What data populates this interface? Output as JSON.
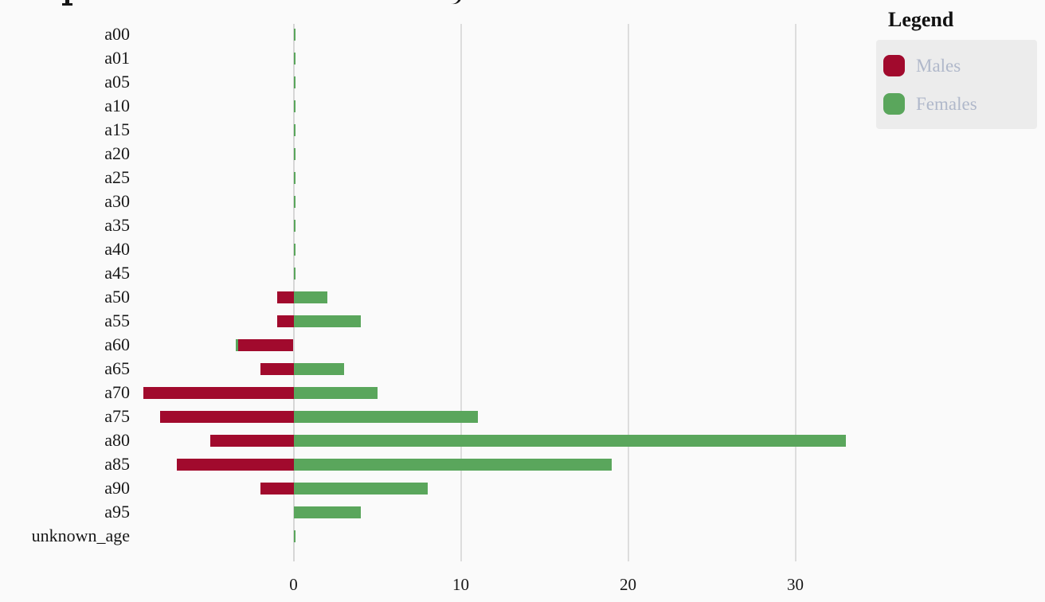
{
  "page": {
    "background": "#fafafa",
    "gridline_color": "#dddddd",
    "zero_line_color": "#d6d6d6",
    "axis_text_color": "#181818"
  },
  "legend": {
    "title": "Legend",
    "box_bg": "#ececec",
    "label_color": "#b0b8ca",
    "items": [
      {
        "label": "Males",
        "color": "#a10a2d"
      },
      {
        "label": "Females",
        "color": "#5aa65c"
      }
    ]
  },
  "chart_data": {
    "type": "bar",
    "orientation": "horizontal-diverging",
    "title": "",
    "xlabel": "",
    "ylabel": "",
    "categories": [
      "a00",
      "a01",
      "a05",
      "a10",
      "a15",
      "a20",
      "a25",
      "a30",
      "a35",
      "a40",
      "a45",
      "a50",
      "a55",
      "a60",
      "a65",
      "a70",
      "a75",
      "a80",
      "a85",
      "a90",
      "a95",
      "unknown_age"
    ],
    "series": [
      {
        "name": "Males",
        "color": "#a10a2d",
        "values": [
          0,
          0,
          0,
          0,
          0,
          0,
          0,
          0,
          0,
          0,
          0,
          -1,
          -1,
          -3.3,
          -2,
          -9,
          -8,
          -5,
          -7,
          -2,
          0,
          0
        ]
      },
      {
        "name": "Females",
        "color": "#5aa65c",
        "values": [
          0.1,
          0.1,
          0.1,
          0.1,
          0.1,
          0.1,
          0.1,
          0.1,
          0.1,
          0.1,
          0.1,
          2,
          4,
          -0.15,
          3,
          5,
          11,
          33,
          19,
          8,
          4,
          0.1
        ]
      }
    ],
    "x_ticks": [
      0,
      10,
      20,
      30
    ],
    "x_tick_labels": [
      "0",
      "10",
      "20",
      "30"
    ],
    "xlim": [
      -9.6,
      44.2
    ],
    "grid": true,
    "legend_position": "top-right"
  }
}
